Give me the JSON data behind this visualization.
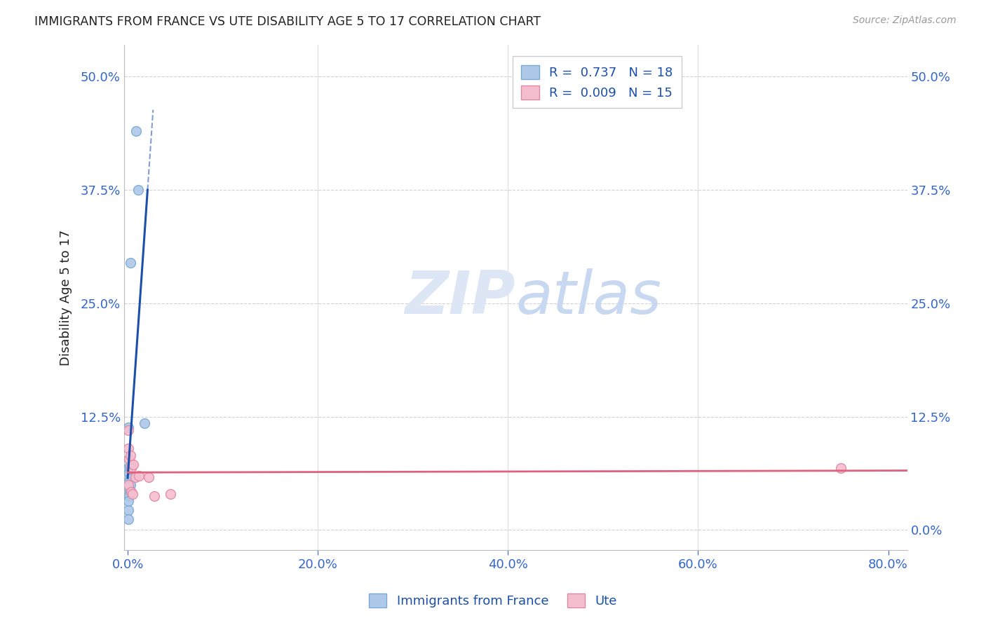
{
  "title": "IMMIGRANTS FROM FRANCE VS UTE DISABILITY AGE 5 TO 17 CORRELATION CHART",
  "source": "Source: ZipAtlas.com",
  "ylabel": "Disability Age 5 to 17",
  "blue_label": "Immigrants from France",
  "pink_label": "Ute",
  "blue_R": 0.737,
  "blue_N": 18,
  "pink_R": 0.009,
  "pink_N": 15,
  "xlim": [
    -0.004,
    0.82
  ],
  "ylim": [
    -0.022,
    0.535
  ],
  "xticks": [
    0.0,
    0.2,
    0.4,
    0.6,
    0.8
  ],
  "yticks": [
    0.0,
    0.125,
    0.25,
    0.375,
    0.5
  ],
  "blue_scatter_x": [
    0.009,
    0.003,
    0.011,
    0.001,
    0.0005,
    0.001,
    0.0015,
    0.002,
    0.003,
    0.002,
    0.003,
    0.0015,
    0.001,
    0.001,
    0.0005,
    0.018,
    0.0005,
    0.002
  ],
  "blue_scatter_y": [
    0.44,
    0.295,
    0.375,
    0.113,
    0.053,
    0.068,
    0.063,
    0.057,
    0.072,
    0.042,
    0.05,
    0.037,
    0.022,
    0.047,
    0.032,
    0.118,
    0.012,
    0.07
  ],
  "pink_scatter_x": [
    0.0005,
    0.001,
    0.004,
    0.0015,
    0.008,
    0.006,
    0.003,
    0.012,
    0.001,
    0.004,
    0.75,
    0.005,
    0.022,
    0.045,
    0.028
  ],
  "pink_scatter_y": [
    0.11,
    0.09,
    0.068,
    0.078,
    0.058,
    0.072,
    0.082,
    0.06,
    0.05,
    0.042,
    0.068,
    0.04,
    0.058,
    0.04,
    0.037
  ],
  "blue_color": "#adc8e8",
  "blue_edge": "#7aaad4",
  "pink_color": "#f5bece",
  "pink_edge": "#e088a4",
  "blue_line_color": "#1a4faa",
  "pink_line_color": "#e06080",
  "grid_color": "#cccccc",
  "axis_color": "#bbbbbb",
  "title_color": "#222222",
  "tick_color": "#3366cc",
  "watermark_color": "#dce6f5",
  "background_color": "#ffffff",
  "marker_size": 100
}
